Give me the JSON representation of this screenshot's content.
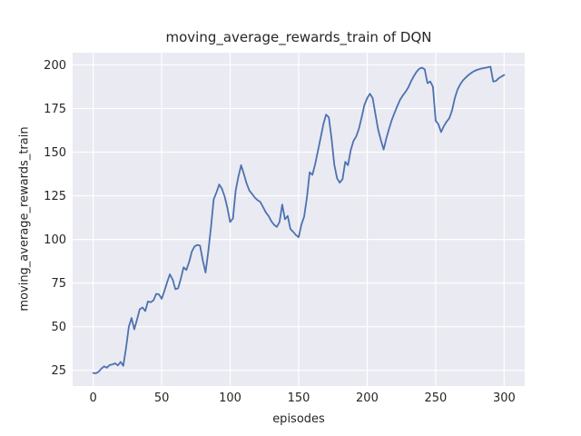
{
  "chart_data": {
    "type": "line",
    "title": "moving_average_rewards_train of DQN",
    "xlabel": "episodes",
    "ylabel": "moving_average_rewards_train",
    "x_ticks": [
      0,
      50,
      100,
      150,
      200,
      250,
      300
    ],
    "y_ticks": [
      25,
      50,
      75,
      100,
      125,
      150,
      175,
      200
    ],
    "xlim": [
      -15,
      315
    ],
    "ylim": [
      16,
      207
    ],
    "grid": true,
    "legend_position": "none",
    "colors": {
      "line": "#4c72b0",
      "axes_background": "#eaeaf2",
      "grid": "#ffffff",
      "figure_background": "#ffffff",
      "text": "#262626"
    },
    "series": [
      {
        "name": "moving_average_rewards_train",
        "x_start": 0,
        "x_step": 2,
        "values": [
          23.5,
          23.3,
          24.2,
          26.0,
          27.3,
          26.5,
          28.0,
          28.4,
          29.0,
          27.8,
          29.8,
          27.6,
          38,
          50,
          55,
          48.5,
          54,
          60,
          61,
          59,
          64.5,
          64,
          65,
          68.8,
          68.5,
          66,
          70.5,
          75.5,
          80,
          77,
          71.5,
          72,
          77.5,
          84,
          82.5,
          87,
          93,
          96,
          96.8,
          96.5,
          88,
          81,
          93,
          107,
          123,
          127,
          131.5,
          129,
          124.5,
          118,
          110,
          112,
          128,
          136,
          142.5,
          137.5,
          132,
          128,
          126,
          124,
          122.5,
          121.5,
          118.5,
          115.5,
          113.5,
          110.5,
          108.5,
          107.2,
          110,
          120,
          111.5,
          113.5,
          106,
          104.3,
          102.5,
          101.3,
          108.5,
          113,
          124,
          138.5,
          137,
          143,
          150.5,
          158,
          166,
          171.5,
          170,
          158,
          143,
          135,
          132.5,
          134.5,
          144.5,
          142.5,
          151,
          156.5,
          159,
          163.5,
          170,
          177,
          181,
          183.5,
          181,
          172,
          163,
          157,
          151.5,
          158,
          163.5,
          168.5,
          172.5,
          176.5,
          180,
          182.5,
          184.5,
          187,
          190.5,
          193.5,
          196,
          197.8,
          198.4,
          197.5,
          189.5,
          190.5,
          187.5,
          168,
          166,
          161.5,
          165,
          167.5,
          169.5,
          174,
          181,
          186,
          189,
          191.2,
          192.8,
          194.2,
          195.4,
          196.4,
          197.1,
          197.6,
          198,
          198.3,
          198.6,
          199,
          190.5,
          190.8,
          192.3,
          193.3,
          194.2
        ]
      }
    ]
  }
}
